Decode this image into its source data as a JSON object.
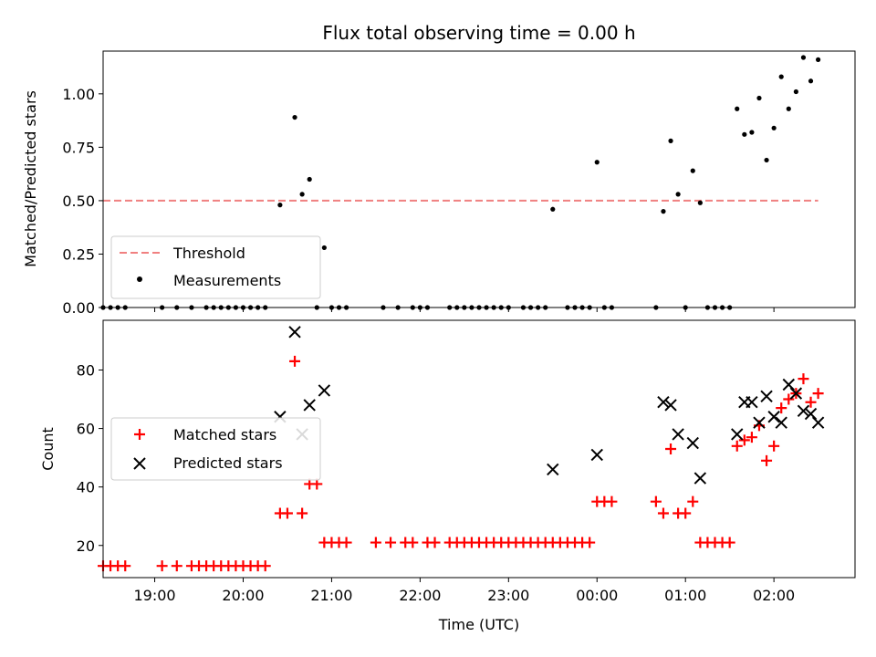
{
  "chart_data": [
    {
      "type": "scatter",
      "title": "Flux total observing time = 0.00 h",
      "xlabel": "",
      "ylabel": "Matched/Predicted stars",
      "ylim": [
        0,
        1.2
      ],
      "yticks": [
        "0.00",
        "0.25",
        "0.50",
        "0.75",
        "1.00"
      ],
      "xlim": [
        "18:25",
        "02:55"
      ],
      "legend_position": "lower-left",
      "threshold": {
        "name": "Threshold",
        "value": 0.5,
        "x_start": "18:25",
        "x_end": "02:30",
        "color": "#f08080",
        "style": "dashed"
      },
      "series": [
        {
          "name": "Measurements",
          "color": "#000000",
          "marker": "dot",
          "points": [
            [
              "18:25",
              0
            ],
            [
              "18:30",
              0
            ],
            [
              "18:35",
              0
            ],
            [
              "18:40",
              0
            ],
            [
              "19:05",
              0
            ],
            [
              "19:15",
              0
            ],
            [
              "19:25",
              0
            ],
            [
              "19:35",
              0
            ],
            [
              "19:40",
              0
            ],
            [
              "19:45",
              0
            ],
            [
              "19:50",
              0
            ],
            [
              "19:55",
              0
            ],
            [
              "20:00",
              0
            ],
            [
              "20:05",
              0
            ],
            [
              "20:10",
              0
            ],
            [
              "20:15",
              0
            ],
            [
              "20:25",
              0.48
            ],
            [
              "20:35",
              0.89
            ],
            [
              "20:40",
              0.53
            ],
            [
              "20:45",
              0.6
            ],
            [
              "20:55",
              0.28
            ],
            [
              "20:50",
              0
            ],
            [
              "21:00",
              0
            ],
            [
              "21:05",
              0
            ],
            [
              "21:10",
              0
            ],
            [
              "21:35",
              0
            ],
            [
              "21:45",
              0
            ],
            [
              "21:55",
              0
            ],
            [
              "22:00",
              0
            ],
            [
              "22:05",
              0
            ],
            [
              "22:20",
              0
            ],
            [
              "22:25",
              0
            ],
            [
              "22:30",
              0
            ],
            [
              "22:35",
              0
            ],
            [
              "22:40",
              0
            ],
            [
              "22:45",
              0
            ],
            [
              "22:50",
              0
            ],
            [
              "22:55",
              0
            ],
            [
              "23:00",
              0
            ],
            [
              "23:10",
              0
            ],
            [
              "23:15",
              0
            ],
            [
              "23:20",
              0
            ],
            [
              "23:25",
              0
            ],
            [
              "23:30",
              0.46
            ],
            [
              "23:40",
              0
            ],
            [
              "23:45",
              0
            ],
            [
              "23:50",
              0
            ],
            [
              "23:55",
              0
            ],
            [
              "00:00",
              0.68
            ],
            [
              "00:05",
              0
            ],
            [
              "00:10",
              0
            ],
            [
              "00:40",
              0
            ],
            [
              "00:45",
              0.45
            ],
            [
              "00:50",
              0.78
            ],
            [
              "00:55",
              0.53
            ],
            [
              "01:05",
              0.64
            ],
            [
              "01:00",
              0
            ],
            [
              "01:10",
              0.49
            ],
            [
              "01:15",
              0
            ],
            [
              "01:20",
              0
            ],
            [
              "01:25",
              0
            ],
            [
              "01:30",
              0
            ],
            [
              "01:35",
              0.93
            ],
            [
              "01:40",
              0.81
            ],
            [
              "01:45",
              0.82
            ],
            [
              "01:50",
              0.98
            ],
            [
              "01:55",
              0.69
            ],
            [
              "02:00",
              0.84
            ],
            [
              "02:05",
              1.08
            ],
            [
              "02:10",
              0.93
            ],
            [
              "02:15",
              1.01
            ],
            [
              "02:20",
              1.17
            ],
            [
              "02:25",
              1.06
            ],
            [
              "02:30",
              1.16
            ]
          ]
        }
      ]
    },
    {
      "type": "scatter",
      "title": "",
      "xlabel": "Time (UTC)",
      "ylabel": "Count",
      "ylim": [
        9,
        97
      ],
      "yticks": [
        "20",
        "40",
        "60",
        "80"
      ],
      "xlim": [
        "18:25",
        "02:55"
      ],
      "xticks": [
        "19:00",
        "20:00",
        "21:00",
        "22:00",
        "23:00",
        "00:00",
        "01:00",
        "02:00"
      ],
      "legend_position": "center-left",
      "series": [
        {
          "name": "Matched stars",
          "color": "#ff0000",
          "marker": "plus",
          "points": [
            [
              "18:25",
              13
            ],
            [
              "18:30",
              13
            ],
            [
              "18:35",
              13
            ],
            [
              "18:40",
              13
            ],
            [
              "19:05",
              13
            ],
            [
              "19:15",
              13
            ],
            [
              "19:25",
              13
            ],
            [
              "19:30",
              13
            ],
            [
              "19:35",
              13
            ],
            [
              "19:40",
              13
            ],
            [
              "19:45",
              13
            ],
            [
              "19:50",
              13
            ],
            [
              "19:55",
              13
            ],
            [
              "20:00",
              13
            ],
            [
              "20:05",
              13
            ],
            [
              "20:10",
              13
            ],
            [
              "20:15",
              13
            ],
            [
              "20:25",
              31
            ],
            [
              "20:30",
              31
            ],
            [
              "20:35",
              83
            ],
            [
              "20:40",
              31
            ],
            [
              "20:45",
              41
            ],
            [
              "20:50",
              41
            ],
            [
              "20:55",
              21
            ],
            [
              "21:00",
              21
            ],
            [
              "21:05",
              21
            ],
            [
              "21:10",
              21
            ],
            [
              "21:30",
              21
            ],
            [
              "21:40",
              21
            ],
            [
              "21:50",
              21
            ],
            [
              "21:55",
              21
            ],
            [
              "22:05",
              21
            ],
            [
              "22:10",
              21
            ],
            [
              "22:20",
              21
            ],
            [
              "22:25",
              21
            ],
            [
              "22:30",
              21
            ],
            [
              "22:35",
              21
            ],
            [
              "22:40",
              21
            ],
            [
              "22:45",
              21
            ],
            [
              "22:50",
              21
            ],
            [
              "22:55",
              21
            ],
            [
              "23:00",
              21
            ],
            [
              "23:05",
              21
            ],
            [
              "23:10",
              21
            ],
            [
              "23:15",
              21
            ],
            [
              "23:20",
              21
            ],
            [
              "23:25",
              21
            ],
            [
              "23:30",
              21
            ],
            [
              "23:35",
              21
            ],
            [
              "23:40",
              21
            ],
            [
              "23:45",
              21
            ],
            [
              "23:50",
              21
            ],
            [
              "23:55",
              21
            ],
            [
              "00:00",
              35
            ],
            [
              "00:05",
              35
            ],
            [
              "00:10",
              35
            ],
            [
              "00:40",
              35
            ],
            [
              "00:45",
              31
            ],
            [
              "00:50",
              53
            ],
            [
              "00:55",
              31
            ],
            [
              "01:00",
              31
            ],
            [
              "01:05",
              35
            ],
            [
              "01:10",
              21
            ],
            [
              "01:15",
              21
            ],
            [
              "01:20",
              21
            ],
            [
              "01:25",
              21
            ],
            [
              "01:30",
              21
            ],
            [
              "01:35",
              54
            ],
            [
              "01:40",
              56
            ],
            [
              "01:45",
              57
            ],
            [
              "01:50",
              61
            ],
            [
              "01:55",
              49
            ],
            [
              "02:00",
              54
            ],
            [
              "02:05",
              67
            ],
            [
              "02:10",
              70
            ],
            [
              "02:15",
              72
            ],
            [
              "02:20",
              77
            ],
            [
              "02:25",
              69
            ],
            [
              "02:30",
              72
            ]
          ]
        },
        {
          "name": "Predicted stars",
          "color": "#000000",
          "marker": "x",
          "points": [
            [
              "20:25",
              64
            ],
            [
              "20:35",
              93
            ],
            [
              "20:40",
              58
            ],
            [
              "20:45",
              68
            ],
            [
              "20:55",
              73
            ],
            [
              "23:30",
              46
            ],
            [
              "00:00",
              51
            ],
            [
              "00:45",
              69
            ],
            [
              "00:50",
              68
            ],
            [
              "00:55",
              58
            ],
            [
              "01:05",
              55
            ],
            [
              "01:10",
              43
            ],
            [
              "01:35",
              58
            ],
            [
              "01:40",
              69
            ],
            [
              "01:45",
              69
            ],
            [
              "01:50",
              62
            ],
            [
              "01:55",
              71
            ],
            [
              "02:00",
              64
            ],
            [
              "02:05",
              62
            ],
            [
              "02:10",
              75
            ],
            [
              "02:15",
              72
            ],
            [
              "02:20",
              66
            ],
            [
              "02:25",
              65
            ],
            [
              "02:30",
              62
            ]
          ]
        }
      ]
    }
  ]
}
